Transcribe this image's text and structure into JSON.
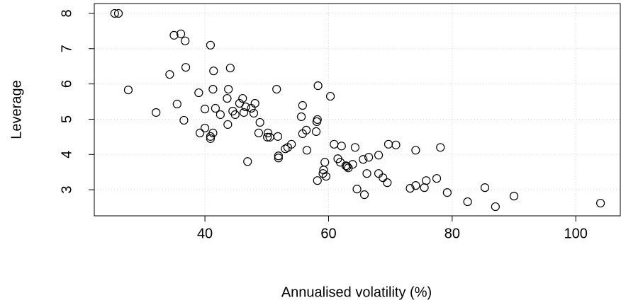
{
  "chart_data": {
    "type": "scatter",
    "x_label": "Annualised volatility (%)",
    "y_label": "Leverage",
    "xlim": [
      22.1,
      107.2
    ],
    "ylim": [
      2.26,
      8.28
    ],
    "xticks": [
      40,
      60,
      80,
      100
    ],
    "yticks": [
      3,
      4,
      5,
      6,
      7,
      8
    ],
    "grid": true,
    "color": "#000000",
    "x": [
      25.4,
      26.0,
      35.0,
      36.1,
      36.8,
      40.9,
      36.9,
      34.3,
      41.4,
      44.1,
      27.6,
      39.0,
      41.3,
      43.8,
      43.6,
      46.1,
      51.6,
      58.3,
      60.3,
      55.8,
      35.5,
      40.0,
      41.7,
      45.6,
      46.6,
      48.1,
      44.5,
      44.9,
      47.5,
      47.9,
      46.3,
      42.5,
      32.1,
      36.6,
      43.7,
      48.9,
      55.6,
      58.2,
      58.1,
      40.0,
      41.3,
      39.2,
      40.9,
      40.9,
      48.7,
      50.2,
      50.1,
      50.5,
      51.8,
      58.0,
      55.8,
      56.4,
      60.9,
      62.1,
      64.3,
      69.7,
      70.9,
      74.1,
      78.1,
      56.5,
      53.0,
      53.4,
      54.0,
      51.9,
      51.9,
      61.5,
      61.9,
      62.8,
      63.2,
      63.9,
      63.0,
      65.6,
      66.5,
      68.1,
      59.4,
      59.2,
      59.1,
      59.6,
      66.2,
      68.1,
      68.8,
      69.5,
      46.9,
      58.2,
      64.6,
      65.8,
      73.2,
      74.1,
      75.8,
      77.5,
      75.5,
      79.2,
      85.3,
      82.5,
      87.0,
      90.0,
      104.0
    ],
    "y": [
      8.0,
      8.0,
      7.38,
      7.42,
      7.22,
      7.1,
      6.47,
      6.27,
      6.37,
      6.45,
      5.83,
      5.75,
      5.85,
      5.85,
      5.59,
      5.59,
      5.85,
      5.95,
      5.65,
      5.39,
      5.43,
      5.29,
      5.31,
      5.45,
      5.35,
      5.45,
      5.23,
      5.13,
      5.31,
      5.17,
      5.19,
      5.13,
      5.19,
      4.97,
      4.85,
      4.91,
      5.07,
      4.99,
      4.93,
      4.75,
      4.61,
      4.61,
      4.51,
      4.45,
      4.61,
      4.61,
      4.49,
      4.49,
      4.51,
      4.65,
      4.59,
      4.69,
      4.29,
      4.24,
      4.2,
      4.29,
      4.27,
      4.12,
      4.2,
      4.12,
      4.16,
      4.2,
      4.29,
      3.96,
      3.9,
      3.88,
      3.78,
      3.68,
      3.62,
      3.72,
      3.66,
      3.86,
      3.92,
      3.98,
      3.78,
      3.56,
      3.46,
      3.38,
      3.46,
      3.46,
      3.34,
      3.2,
      3.8,
      3.26,
      3.02,
      2.86,
      3.04,
      3.12,
      3.26,
      3.32,
      3.06,
      2.92,
      3.06,
      2.66,
      2.52,
      2.82,
      2.62
    ]
  }
}
